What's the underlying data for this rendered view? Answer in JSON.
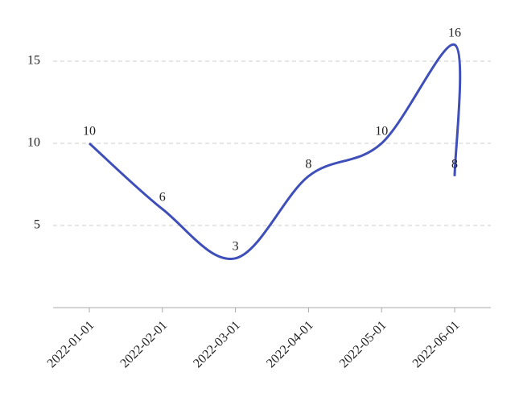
{
  "chart_data": {
    "type": "line",
    "x": [
      "2022-01-01",
      "2022-02-01",
      "2022-03-01",
      "2022-04-01",
      "2022-05-01",
      "2022-06-01",
      "2022-06-01"
    ],
    "series": [
      {
        "color": "#3f4fba",
        "values": [
          10,
          6,
          3,
          8,
          10,
          16,
          8
        ]
      }
    ],
    "xticks": [
      "2022-01-01",
      "2022-02-01",
      "2022-03-01",
      "2022-04-01",
      "2022-05-01",
      "2022-06-01"
    ],
    "ylim": [
      0,
      17
    ],
    "yticks": [
      5,
      10,
      15
    ],
    "grid": true
  }
}
